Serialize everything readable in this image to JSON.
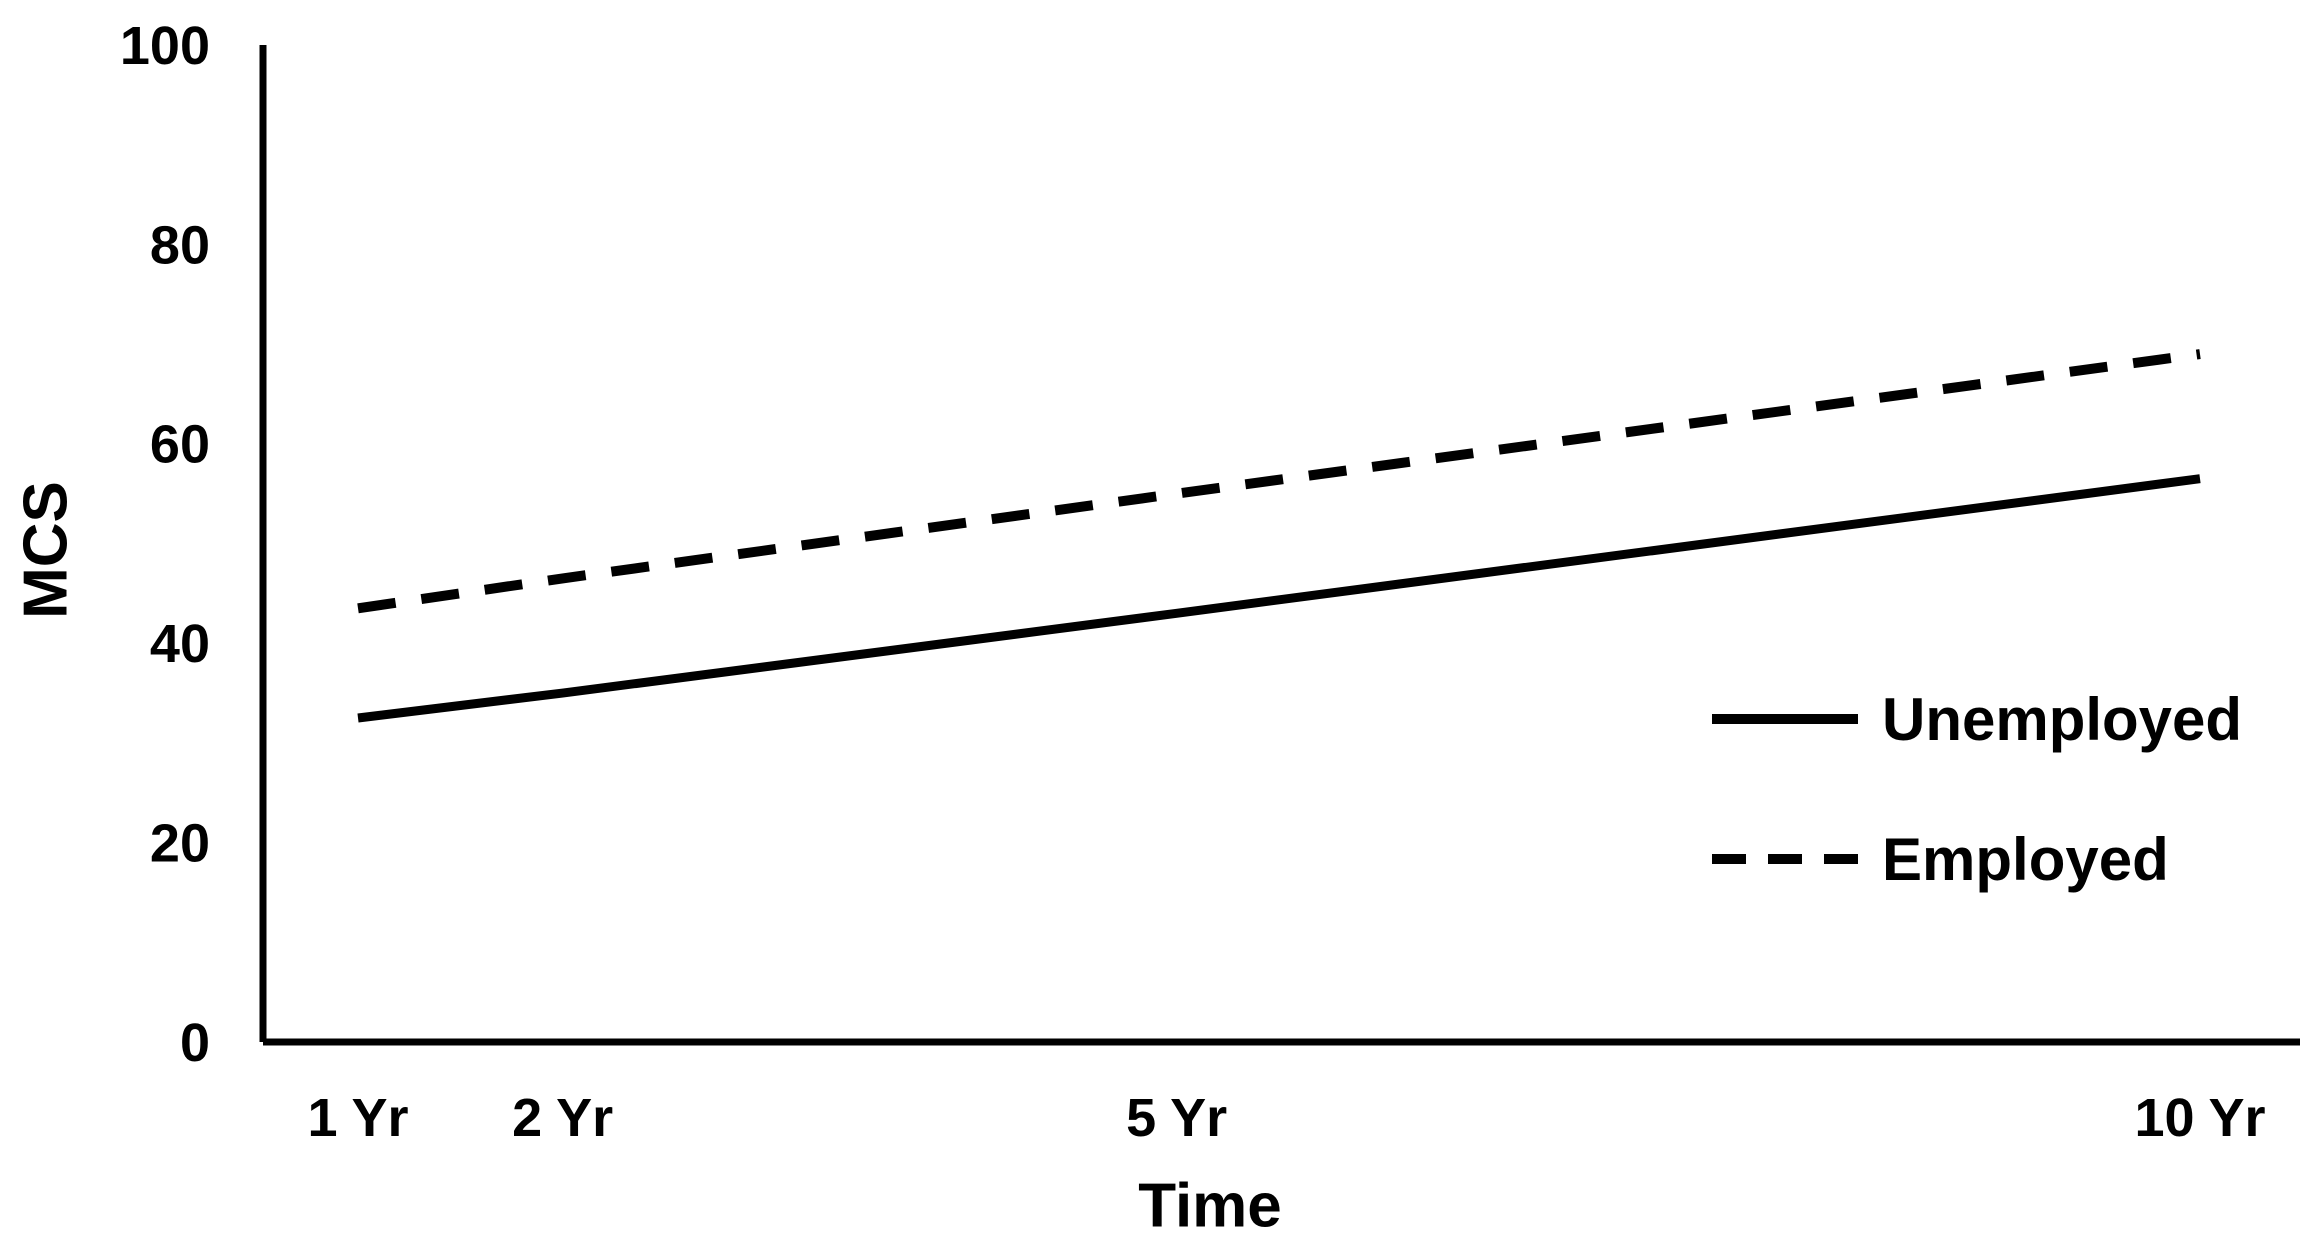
{
  "figure": {
    "background_color": "#ffffff",
    "ink_color": "#000000"
  },
  "chart_data": {
    "type": "line",
    "title": "",
    "xlabel": "Time",
    "ylabel": "MCS",
    "x_categories": [
      "1 Yr",
      "2 Yr",
      "5 Yr",
      "10 Yr"
    ],
    "x_values_years": [
      1,
      2,
      5,
      10
    ],
    "x_axis_scale": "linear-in-years",
    "ylim": [
      0,
      100
    ],
    "yticks": [
      0,
      20,
      40,
      60,
      80,
      100
    ],
    "grid": false,
    "series": [
      {
        "name": "Unemployed",
        "line_style": "solid",
        "color": "#000000",
        "values": [
          32.5,
          35,
          43,
          56.5
        ]
      },
      {
        "name": "Employed",
        "line_style": "dashed",
        "color": "#000000",
        "values": [
          43.5,
          46.5,
          55,
          69
        ]
      }
    ],
    "legend": {
      "position": "right-middle",
      "entries": [
        "Unemployed",
        "Employed"
      ]
    }
  }
}
